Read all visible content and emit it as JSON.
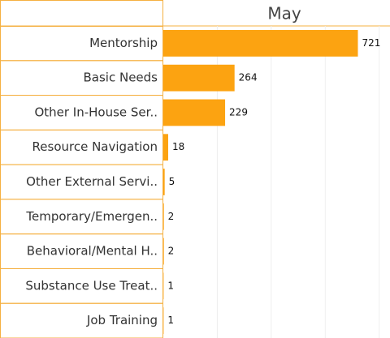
{
  "chart_data": {
    "type": "bar",
    "orientation": "horizontal",
    "header": "May",
    "categories": [
      "Mentorship",
      "Basic Needs",
      "Other In-House Ser..",
      "Resource Navigation",
      "Other External Servi..",
      "Temporary/Emergen..",
      "Behavioral/Mental H..",
      "Substance Use Treat..",
      "Job Training"
    ],
    "values": [
      721,
      264,
      229,
      18,
      5,
      2,
      2,
      1,
      1
    ],
    "color": "#fca311",
    "border_color": "#f5b041",
    "xlim": [
      0,
      840
    ],
    "xticks": [
      200,
      400,
      600,
      800
    ],
    "grid": true
  }
}
